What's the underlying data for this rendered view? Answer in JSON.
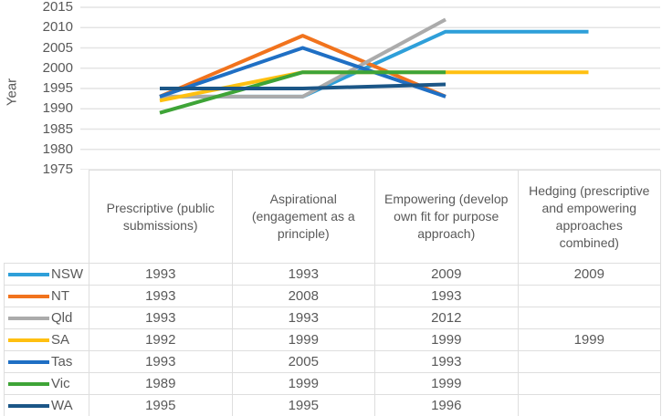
{
  "chart_data": {
    "type": "line",
    "title": "",
    "xlabel": "",
    "ylabel": "Year",
    "ylim": [
      1975,
      2015
    ],
    "y_ticks": [
      2015,
      2010,
      2005,
      2000,
      1995,
      1990,
      1985,
      1980,
      1975
    ],
    "grid": true,
    "legend_position": "table-left",
    "categories": [
      "Prescriptive (public submissions)",
      "Aspirational (engagement as a principle)",
      "Empowering (develop own fit for purpose approach)",
      "Hedging (prescriptive and empowering approaches combined)"
    ],
    "series": [
      {
        "name": "NSW",
        "color": "#2E9FD9",
        "values": [
          1993,
          1993,
          2009,
          2009
        ]
      },
      {
        "name": "NT",
        "color": "#F1731D",
        "values": [
          1993,
          2008,
          1993,
          null
        ]
      },
      {
        "name": "Qld",
        "color": "#ABABAB",
        "values": [
          1993,
          1993,
          2012,
          null
        ]
      },
      {
        "name": "SA",
        "color": "#FFC011",
        "values": [
          1992,
          1999,
          1999,
          1999
        ]
      },
      {
        "name": "Tas",
        "color": "#1F6FC4",
        "values": [
          1993,
          2005,
          1993,
          null
        ]
      },
      {
        "name": "Vic",
        "color": "#3EA437",
        "values": [
          1989,
          1999,
          1999,
          null
        ]
      },
      {
        "name": "WA",
        "color": "#1B5687",
        "values": [
          1995,
          1995,
          1996,
          null
        ]
      }
    ]
  },
  "table": {
    "columns": [
      "Prescriptive (public submissions)",
      "Aspirational (engagement as a principle)",
      "Empowering (develop own fit for purpose approach)",
      "Hedging (prescriptive and empowering approaches combined)"
    ],
    "rows": [
      {
        "label": "NSW",
        "cells": [
          "1993",
          "1993",
          "2009",
          "2009"
        ]
      },
      {
        "label": "NT",
        "cells": [
          "1993",
          "2008",
          "1993",
          ""
        ]
      },
      {
        "label": "Qld",
        "cells": [
          "1993",
          "1993",
          "2012",
          ""
        ]
      },
      {
        "label": "SA",
        "cells": [
          "1992",
          "1999",
          "1999",
          "1999"
        ]
      },
      {
        "label": "Tas",
        "cells": [
          "1993",
          "2005",
          "1993",
          ""
        ]
      },
      {
        "label": "Vic",
        "cells": [
          "1989",
          "1999",
          "1999",
          ""
        ]
      },
      {
        "label": "WA",
        "cells": [
          "1995",
          "1995",
          "1996",
          ""
        ]
      }
    ]
  }
}
